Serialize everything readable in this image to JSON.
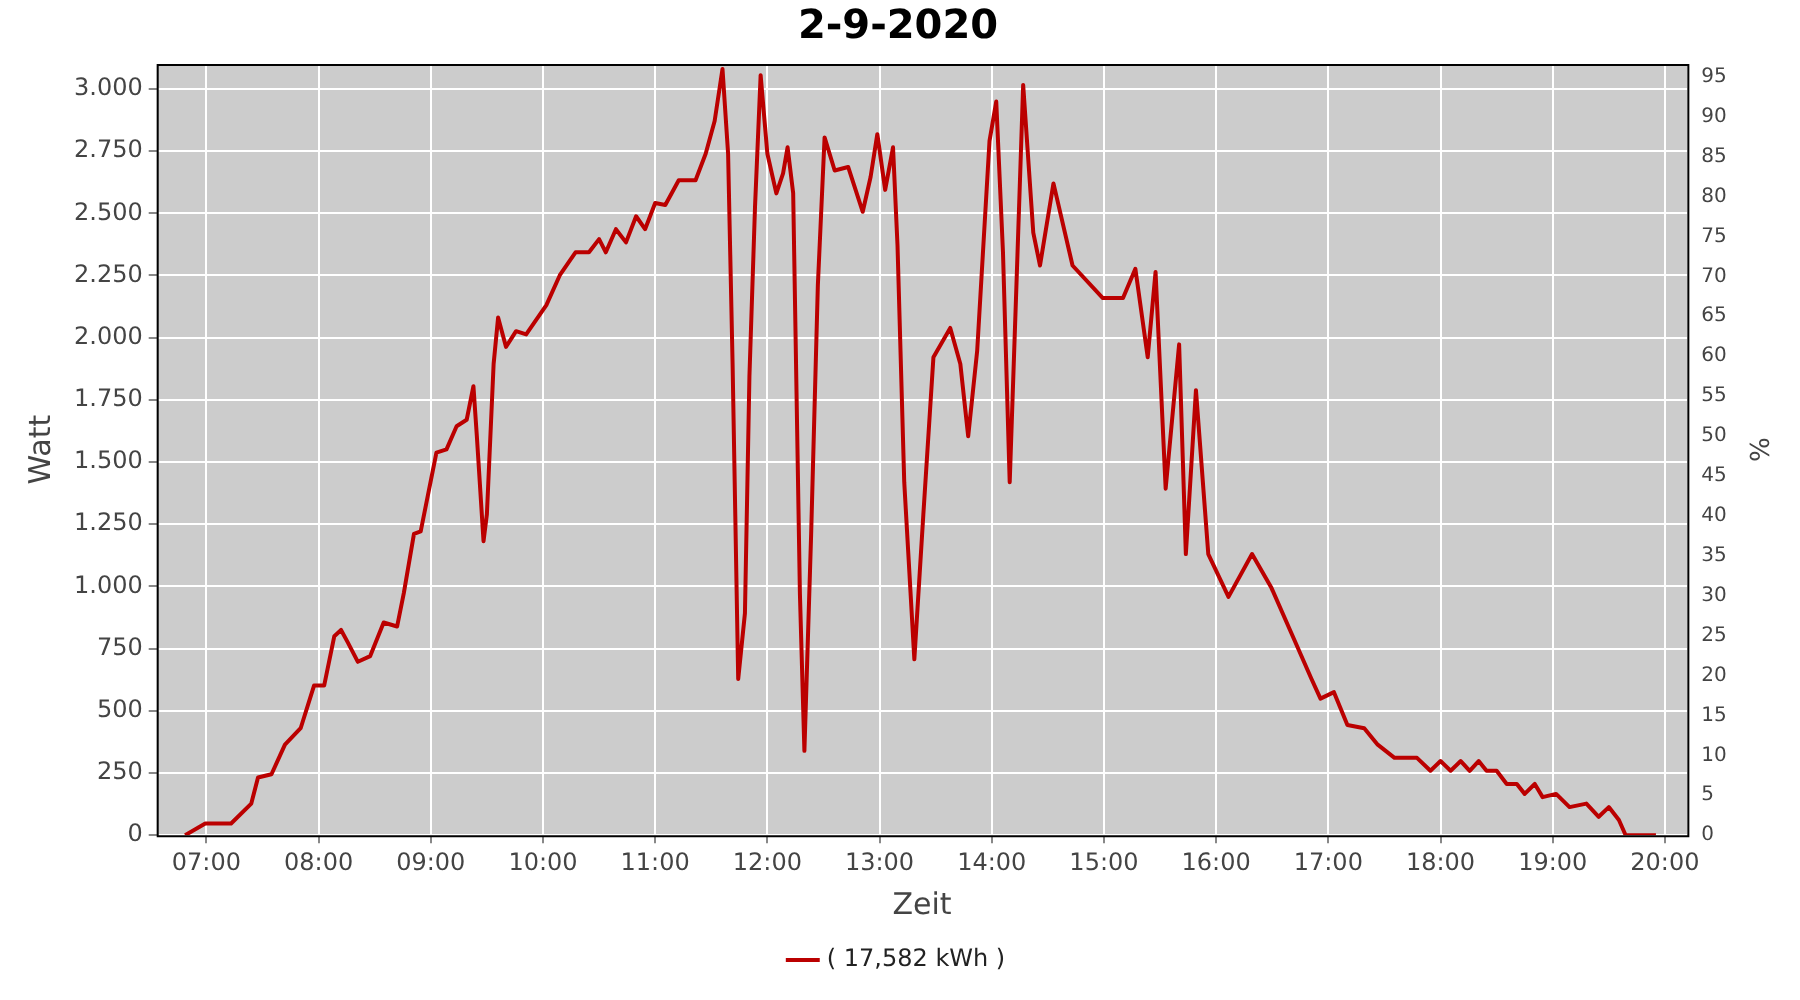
{
  "chart_data": {
    "type": "line",
    "title": "2-9-2020",
    "xlabel": "Zeit",
    "ylabel": "Watt",
    "y2label": "%",
    "xlim": [
      6.557,
      20.2
    ],
    "ylim": [
      0,
      3100
    ],
    "y2lim": [
      0,
      96.6
    ],
    "xticks": [
      {
        "value": 7,
        "label": "07:00"
      },
      {
        "value": 8,
        "label": "08:00"
      },
      {
        "value": 9,
        "label": "09:00"
      },
      {
        "value": 10,
        "label": "10:00"
      },
      {
        "value": 11,
        "label": "11:00"
      },
      {
        "value": 12,
        "label": "12:00"
      },
      {
        "value": 13,
        "label": "13:00"
      },
      {
        "value": 14,
        "label": "14:00"
      },
      {
        "value": 15,
        "label": "15:00"
      },
      {
        "value": 16,
        "label": "16:00"
      },
      {
        "value": 17,
        "label": "17:00"
      },
      {
        "value": 18,
        "label": "18:00"
      },
      {
        "value": 19,
        "label": "19:00"
      },
      {
        "value": 20,
        "label": "20:00"
      }
    ],
    "yticks": [
      0,
      250,
      500,
      750,
      {
        "value": 1000,
        "label": "1.000"
      },
      {
        "value": 1250,
        "label": "1.250"
      },
      {
        "value": 1500,
        "label": "1.500"
      },
      {
        "value": 1750,
        "label": "1.750"
      },
      {
        "value": 2000,
        "label": "2.000"
      },
      {
        "value": 2250,
        "label": "2.250"
      },
      {
        "value": 2500,
        "label": "2.500"
      },
      {
        "value": 2750,
        "label": "2.750"
      },
      {
        "value": 3000,
        "label": "3.000"
      }
    ],
    "y2ticks": [
      0,
      5,
      10,
      15,
      20,
      25,
      30,
      35,
      40,
      45,
      50,
      55,
      60,
      65,
      70,
      75,
      80,
      85,
      90,
      95
    ],
    "grid": true,
    "legend": "bottom",
    "marker": "none",
    "line_style": "solid",
    "series": [
      {
        "name": "( 17,582 kWh )",
        "color": "#bb0000",
        "x": [
          6.81,
          6.99,
          7.22,
          7.4,
          7.46,
          7.58,
          7.7,
          7.84,
          7.96,
          8.05,
          8.14,
          8.2,
          8.26,
          8.35,
          8.46,
          8.58,
          8.7,
          8.76,
          8.85,
          8.91,
          9.05,
          9.14,
          9.23,
          9.32,
          9.38,
          9.41,
          9.47,
          9.5,
          9.56,
          9.6,
          9.67,
          9.76,
          9.85,
          10.03,
          10.15,
          10.29,
          10.41,
          10.5,
          10.56,
          10.65,
          10.74,
          10.83,
          10.91,
          11.0,
          11.09,
          11.21,
          11.36,
          11.45,
          11.53,
          11.6,
          11.65,
          11.69,
          11.74,
          11.8,
          11.84,
          11.89,
          11.94,
          12.0,
          12.08,
          12.14,
          12.18,
          12.23,
          12.29,
          12.33,
          12.39,
          12.45,
          12.51,
          12.6,
          12.72,
          12.85,
          12.92,
          12.98,
          13.05,
          13.12,
          13.16,
          13.22,
          13.31,
          13.39,
          13.48,
          13.63,
          13.72,
          13.79,
          13.87,
          13.98,
          14.04,
          14.1,
          14.16,
          14.22,
          14.28,
          14.37,
          14.43,
          14.55,
          14.72,
          14.99,
          15.17,
          15.28,
          15.39,
          15.46,
          15.55,
          15.67,
          15.73,
          15.82,
          15.93,
          16.11,
          16.32,
          16.49,
          16.67,
          16.85,
          16.93,
          17.05,
          17.17,
          17.32,
          17.44,
          17.59,
          17.79,
          17.91,
          18.0,
          18.09,
          18.18,
          18.26,
          18.34,
          18.41,
          18.5,
          18.59,
          18.68,
          18.75,
          18.84,
          18.91,
          19.03,
          19.15,
          19.3,
          19.41,
          19.5,
          19.59,
          19.65,
          19.92
        ],
        "values": [
          0,
          47,
          47,
          127,
          232,
          245,
          364,
          430,
          602,
          602,
          800,
          825,
          775,
          697,
          720,
          855,
          839,
          974,
          1211,
          1221,
          1538,
          1551,
          1644,
          1670,
          1805,
          1607,
          1182,
          1290,
          1894,
          2081,
          1963,
          2026,
          2013,
          2131,
          2251,
          2343,
          2343,
          2396,
          2343,
          2436,
          2383,
          2488,
          2436,
          2541,
          2533,
          2633,
          2633,
          2739,
          2871,
          3080,
          2739,
          1894,
          628,
          892,
          1844,
          2527,
          3055,
          2739,
          2580,
          2660,
          2765,
          2580,
          971,
          339,
          1208,
          2211,
          2805,
          2672,
          2686,
          2506,
          2646,
          2818,
          2594,
          2765,
          2370,
          1419,
          707,
          1288,
          1921,
          2039,
          1894,
          1604,
          1947,
          2791,
          2949,
          2343,
          1419,
          2211,
          3016,
          2422,
          2290,
          2620,
          2290,
          2159,
          2159,
          2277,
          1921,
          2264,
          1393,
          1973,
          1130,
          1789,
          1130,
          958,
          1130,
          997,
          813,
          628,
          549,
          575,
          443,
          430,
          364,
          311,
          311,
          259,
          298,
          259,
          298,
          259,
          298,
          259,
          259,
          206,
          206,
          166,
          206,
          153,
          166,
          113,
          127,
          74,
          113,
          61,
          0,
          0
        ]
      }
    ]
  }
}
